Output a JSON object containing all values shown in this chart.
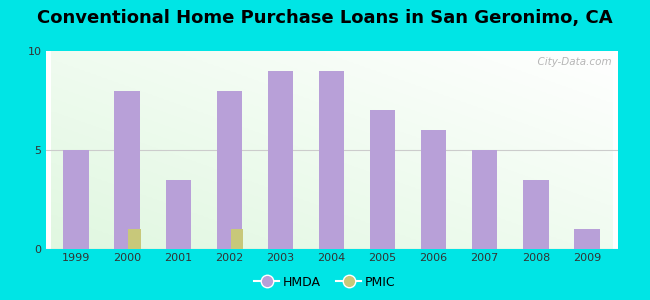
{
  "title": "Conventional Home Purchase Loans in San Geronimo, CA",
  "years": [
    1999,
    2000,
    2001,
    2002,
    2003,
    2004,
    2005,
    2006,
    2007,
    2008,
    2009
  ],
  "hmda_values": [
    5,
    8,
    3.5,
    8,
    9,
    9,
    7,
    6,
    5,
    3.5,
    1
  ],
  "pmic_values": [
    0,
    1,
    0,
    1,
    0,
    0,
    0,
    0,
    0,
    0,
    0
  ],
  "hmda_color": "#b8a0d8",
  "pmic_color": "#c8c87a",
  "hmda_bar_width": 0.5,
  "pmic_bar_width": 0.25,
  "ylim": [
    0,
    10
  ],
  "yticks": [
    0,
    5,
    10
  ],
  "outer_background": "#00e5e5",
  "title_fontsize": 13,
  "watermark_text": "  City-Data.com",
  "legend_labels": [
    "HMDA",
    "PMIC"
  ]
}
